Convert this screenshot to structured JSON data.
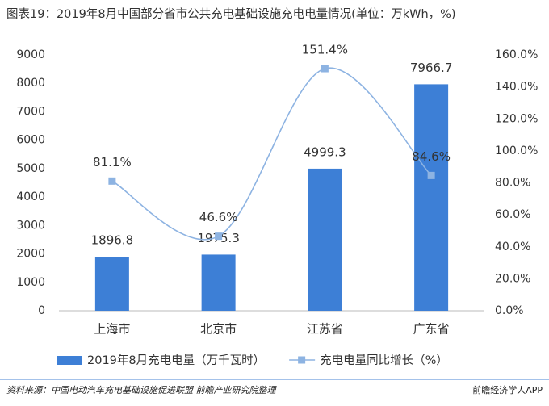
{
  "chart_data": {
    "type": "bar",
    "title": "图表19：2019年8月中国部分省市公共充电基础设施充电电量情况(单位：万kWh，%)",
    "categories": [
      "上海市",
      "北京市",
      "江苏省",
      "广东省"
    ],
    "series": [
      {
        "name": "2019年8月充电电量（万千瓦时）",
        "type": "bar",
        "color": "#3d7fd6",
        "values": [
          1896.8,
          1975.3,
          4999.3,
          7966.7
        ]
      },
      {
        "name": "充电电量同比增长（%）",
        "type": "line",
        "axis": "y2",
        "color": "#8db3e2",
        "values": [
          81.1,
          46.6,
          151.4,
          84.6
        ],
        "value_labels": [
          "81.1%",
          "46.6%",
          "151.4%",
          "84.6%"
        ]
      }
    ],
    "ylim": [
      0,
      9000
    ],
    "yticks": [
      0,
      1000,
      2000,
      3000,
      4000,
      5000,
      6000,
      7000,
      8000,
      9000
    ],
    "y2lim": [
      0,
      160
    ],
    "y2ticks": [
      {
        "value": 0,
        "label": "0.0%"
      },
      {
        "value": 20,
        "label": "20.0%"
      },
      {
        "value": 40,
        "label": "40.0%"
      },
      {
        "value": 60,
        "label": "60.0%"
      },
      {
        "value": 80,
        "label": "80.0%"
      },
      {
        "value": 100,
        "label": "100.0%"
      },
      {
        "value": 120,
        "label": "120.0%"
      },
      {
        "value": 140,
        "label": "140.0%"
      },
      {
        "value": 160,
        "label": "160.0%"
      }
    ],
    "source": "资料来源：中国电动汽车充电基础设施促进联盟 前瞻产业研究院整理",
    "brand": "前瞻经济学人APP"
  }
}
